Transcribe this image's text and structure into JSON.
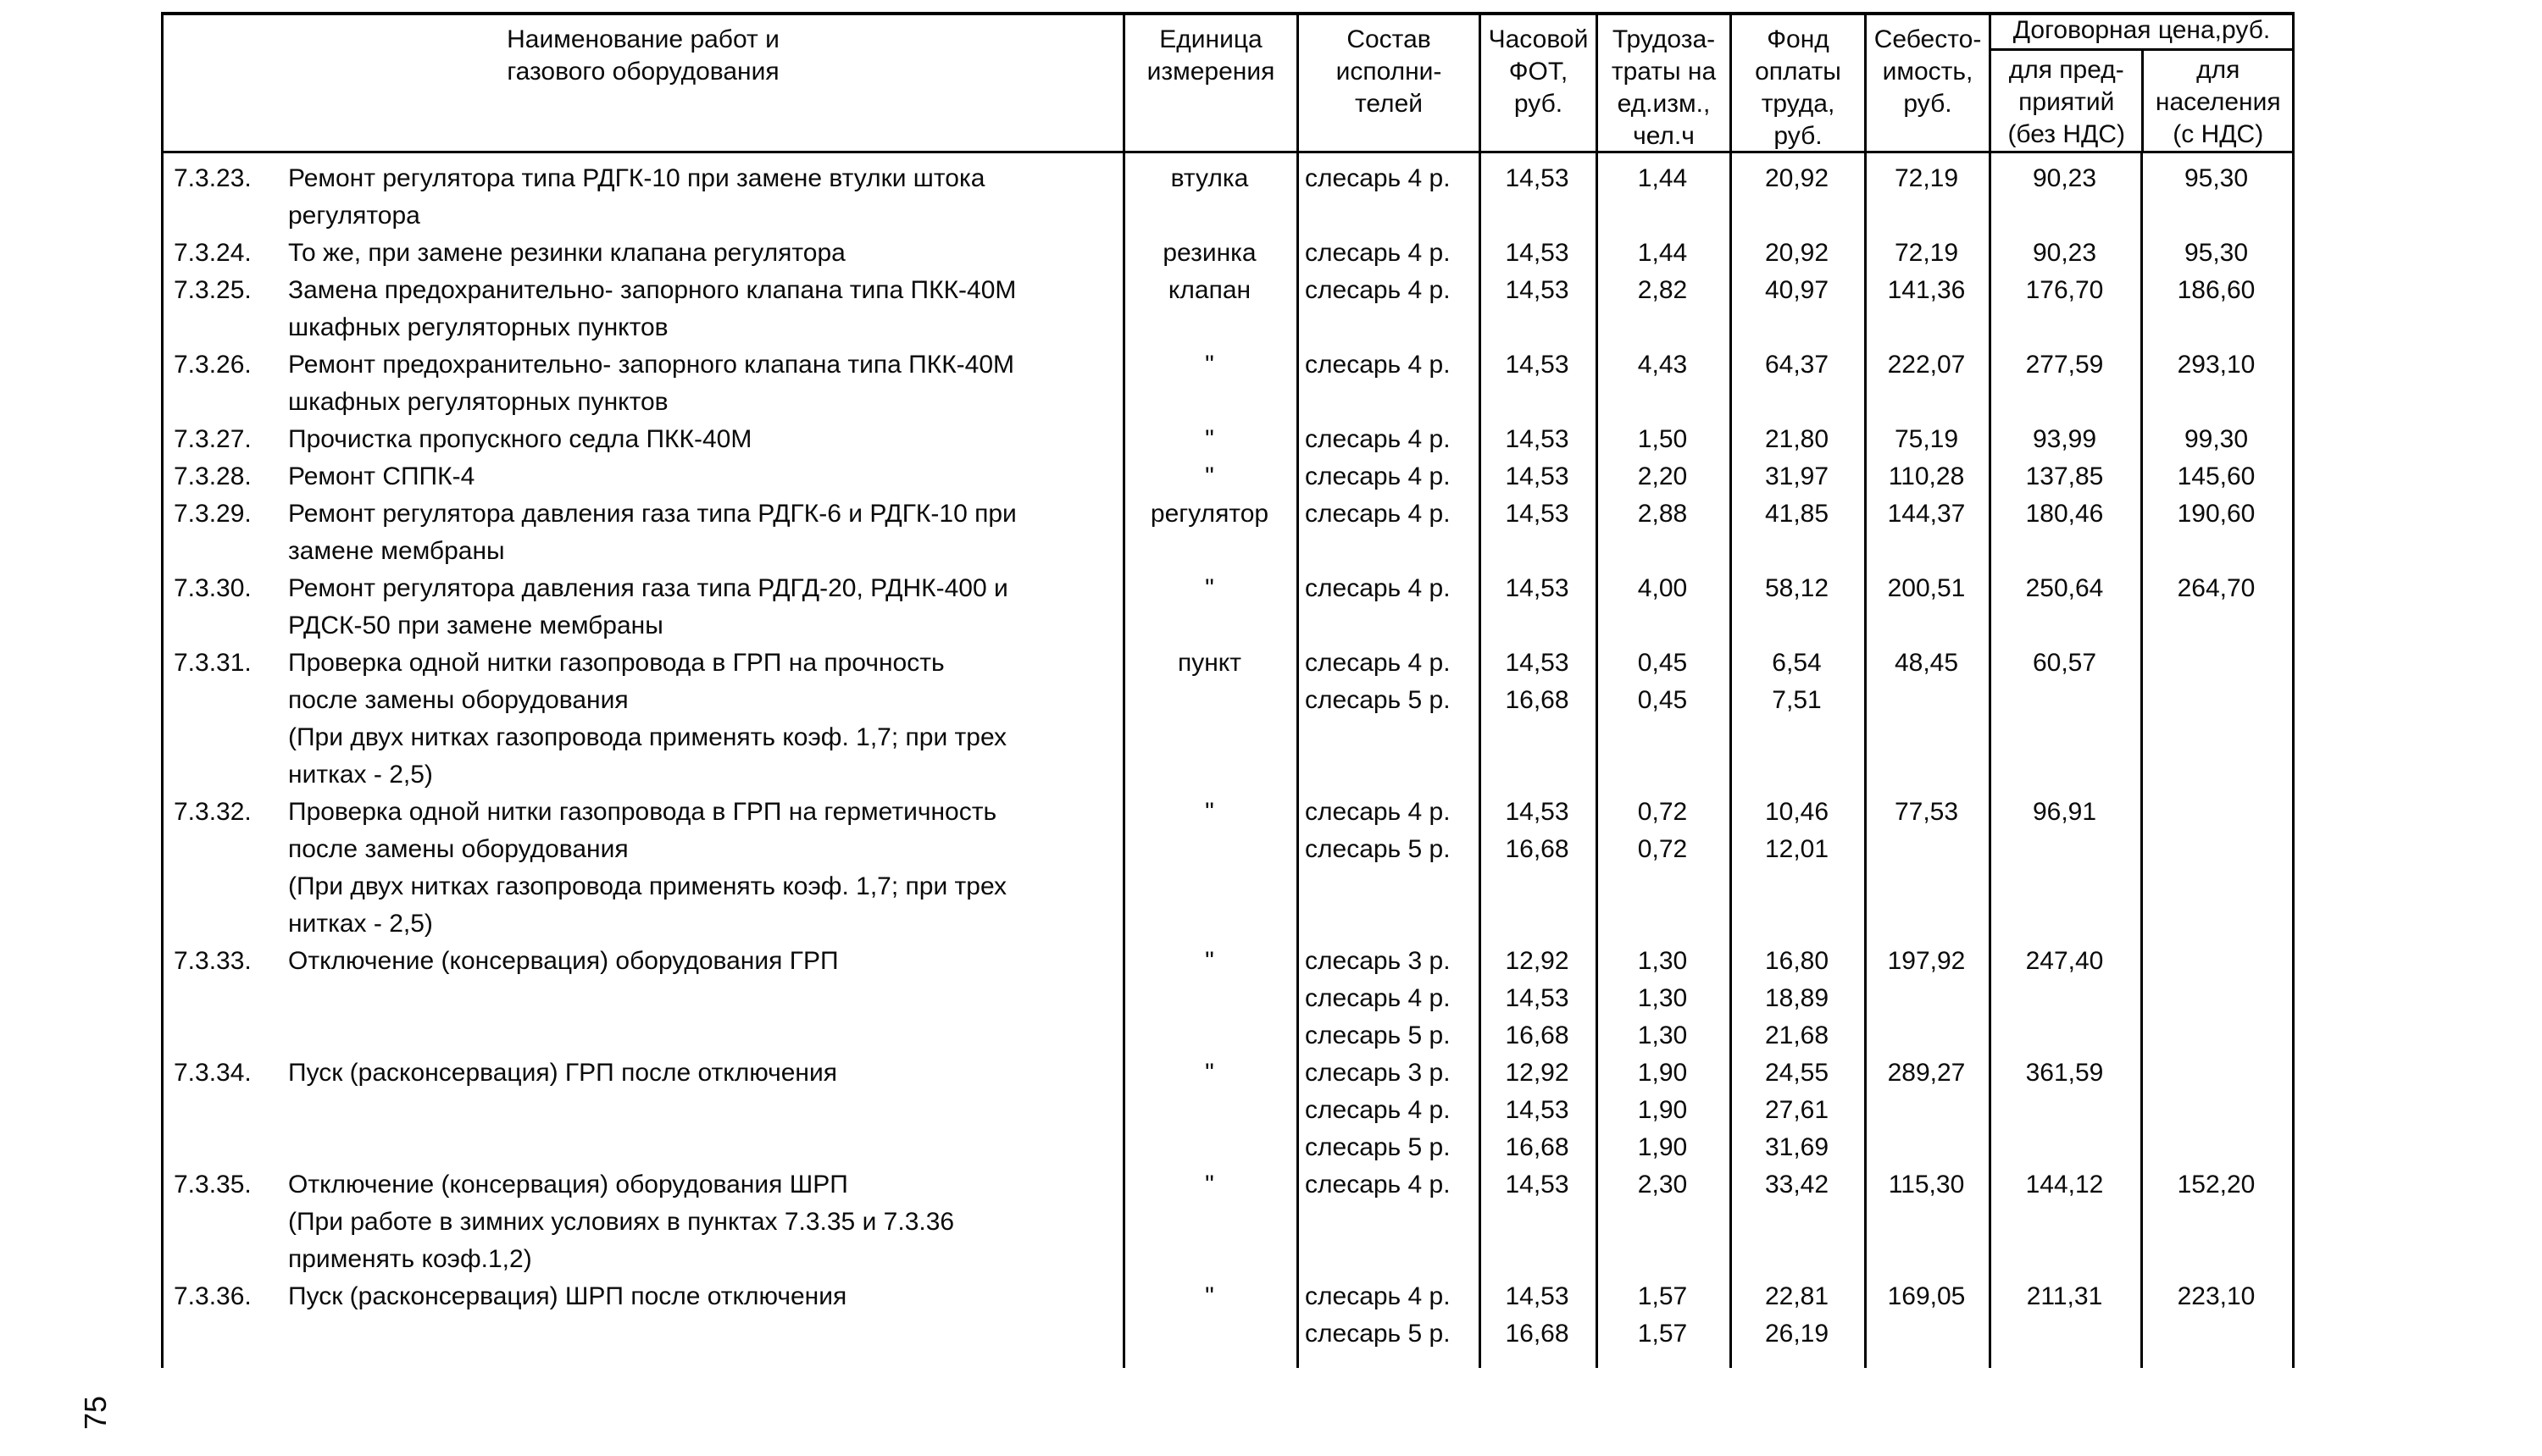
{
  "page": {
    "number": "75"
  },
  "table": {
    "headers": {
      "name": "Наименование работ и\nгазового оборудования",
      "unit": "Единица\nизмерения",
      "crew": "Состав\nисполни-\nтелей",
      "hourly_wage": "Часовой\nФОТ,\nруб.",
      "labor": "Трудоза-\nтраты на\nед.изм.,\nчел.ч",
      "wage_fund": "Фонд\nоплаты\nтруда,\nруб.",
      "cost": "Себесто-\nимость,\nруб.",
      "contract_price": "Договорная цена,руб.",
      "price_enterprise": "для пред-\nприятий\n(без НДС)",
      "price_public": "для\nнаселения\n(с НДС)"
    },
    "rows": [
      {
        "id": "7.3.23.",
        "name_lines": [
          "Ремонт регулятора типа РДГК-10  при замене втулки штока",
          "регулятора"
        ],
        "unit": "втулка",
        "crew": [
          "слесарь 4 р."
        ],
        "hourly_wage": [
          "14,53"
        ],
        "labor": [
          "1,44"
        ],
        "wage_fund": [
          "20,92"
        ],
        "cost": "72,19",
        "price_enterprise": "90,23",
        "price_public": "95,30"
      },
      {
        "id": "7.3.24.",
        "name_lines": [
          "То же, при замене резинки клапана регулятора"
        ],
        "unit": "резинка",
        "crew": [
          "слесарь 4 р."
        ],
        "hourly_wage": [
          "14,53"
        ],
        "labor": [
          "1,44"
        ],
        "wage_fund": [
          "20,92"
        ],
        "cost": "72,19",
        "price_enterprise": "90,23",
        "price_public": "95,30"
      },
      {
        "id": "7.3.25.",
        "name_lines": [
          "Замена предохранительно- запорного клапана типа ПКК-40М",
          "шкафных регуляторных пунктов"
        ],
        "unit": "клапан",
        "crew": [
          "слесарь 4 р."
        ],
        "hourly_wage": [
          "14,53"
        ],
        "labor": [
          "2,82"
        ],
        "wage_fund": [
          "40,97"
        ],
        "cost": "141,36",
        "price_enterprise": "176,70",
        "price_public": "186,60"
      },
      {
        "id": "7.3.26.",
        "name_lines": [
          "Ремонт предохранительно- запорного клапана типа ПКК-40М",
          "шкафных регуляторных пунктов"
        ],
        "unit": "\"",
        "crew": [
          "слесарь 4 р."
        ],
        "hourly_wage": [
          "14,53"
        ],
        "labor": [
          "4,43"
        ],
        "wage_fund": [
          "64,37"
        ],
        "cost": "222,07",
        "price_enterprise": "277,59",
        "price_public": "293,10"
      },
      {
        "id": "7.3.27.",
        "name_lines": [
          "Прочистка  пропускного седла  ПКК-40М"
        ],
        "unit": "\"",
        "crew": [
          "слесарь 4 р."
        ],
        "hourly_wage": [
          "14,53"
        ],
        "labor": [
          "1,50"
        ],
        "wage_fund": [
          "21,80"
        ],
        "cost": "75,19",
        "price_enterprise": "93,99",
        "price_public": "99,30"
      },
      {
        "id": "7.3.28.",
        "name_lines": [
          "Ремонт  СППК-4"
        ],
        "unit": "\"",
        "crew": [
          "слесарь 4 р."
        ],
        "hourly_wage": [
          "14,53"
        ],
        "labor": [
          "2,20"
        ],
        "wage_fund": [
          "31,97"
        ],
        "cost": "110,28",
        "price_enterprise": "137,85",
        "price_public": "145,60"
      },
      {
        "id": "7.3.29.",
        "name_lines": [
          "Ремонт регулятора давления газа типа РДГК-6 и РДГК-10 при",
          "замене мембраны"
        ],
        "unit": "регулятор",
        "crew": [
          "слесарь 4 р."
        ],
        "hourly_wage": [
          "14,53"
        ],
        "labor": [
          "2,88"
        ],
        "wage_fund": [
          "41,85"
        ],
        "cost": "144,37",
        "price_enterprise": "180,46",
        "price_public": "190,60"
      },
      {
        "id": "7.3.30.",
        "name_lines": [
          "Ремонт регулятора давления газа типа РДГД-20, РДНК-400 и",
          "РДСК-50 при замене мембраны"
        ],
        "unit": "\"",
        "crew": [
          "слесарь 4 р."
        ],
        "hourly_wage": [
          "14,53"
        ],
        "labor": [
          "4,00"
        ],
        "wage_fund": [
          "58,12"
        ],
        "cost": "200,51",
        "price_enterprise": "250,64",
        "price_public": "264,70"
      },
      {
        "id": "7.3.31.",
        "name_lines": [
          "Проверка одной  нитки  газопровода в  ГРП на прочность",
          "после замены  оборудования",
          "(При двух нитках газопровода  применять коэф. 1,7; при трех",
          "нитках - 2,5)"
        ],
        "unit": "пункт",
        "crew": [
          "слесарь 4 р.",
          "слесарь 5 р."
        ],
        "hourly_wage": [
          "14,53",
          "16,68"
        ],
        "labor": [
          "0,45",
          "0,45"
        ],
        "wage_fund": [
          "6,54",
          "7,51"
        ],
        "cost": "48,45",
        "price_enterprise": "60,57",
        "price_public": ""
      },
      {
        "id": "7.3.32.",
        "name_lines": [
          "Проверка одной нитки газопровода в ГРП на герметичность",
          "после  замены  оборудования",
          "(При двух нитках газопровода  применять коэф. 1,7; при трех",
          "нитках - 2,5)"
        ],
        "unit": "\"",
        "crew": [
          "слесарь 4 р.",
          "слесарь 5 р."
        ],
        "hourly_wage": [
          "14,53",
          "16,68"
        ],
        "labor": [
          "0,72",
          "0,72"
        ],
        "wage_fund": [
          "10,46",
          "12,01"
        ],
        "cost": "77,53",
        "price_enterprise": "96,91",
        "price_public": ""
      },
      {
        "id": "7.3.33.",
        "name_lines": [
          "Отключение (консервация)  оборудования ГРП"
        ],
        "unit": "\"",
        "crew": [
          "слесарь 3 р.",
          "слесарь 4 р.",
          "слесарь 5 р."
        ],
        "hourly_wage": [
          "12,92",
          "14,53",
          "16,68"
        ],
        "labor": [
          "1,30",
          "1,30",
          "1,30"
        ],
        "wage_fund": [
          "16,80",
          "18,89",
          "21,68"
        ],
        "cost": "197,92",
        "price_enterprise": "247,40",
        "price_public": ""
      },
      {
        "id": "7.3.34.",
        "name_lines": [
          "Пуск (расконсервация) ГРП после отключения"
        ],
        "unit": "\"",
        "crew": [
          "слесарь 3 р.",
          "слесарь 4 р.",
          "слесарь 5 р."
        ],
        "hourly_wage": [
          "12,92",
          "14,53",
          "16,68"
        ],
        "labor": [
          "1,90",
          "1,90",
          "1,90"
        ],
        "wage_fund": [
          "24,55",
          "27,61",
          "31,69"
        ],
        "cost": "289,27",
        "price_enterprise": "361,59",
        "price_public": ""
      },
      {
        "id": "7.3.35.",
        "name_lines": [
          "Отключение (консервация)  оборудования ШРП",
          "(При работе в зимних условиях в пунктах 7.3.35 и 7.3.36",
          "применять коэф.1,2)"
        ],
        "unit": "\"",
        "crew": [
          "слесарь 4 р."
        ],
        "hourly_wage": [
          "14,53"
        ],
        "labor": [
          "2,30"
        ],
        "wage_fund": [
          "33,42"
        ],
        "cost": "115,30",
        "price_enterprise": "144,12",
        "price_public": "152,20"
      },
      {
        "id": "7.3.36.",
        "name_lines": [
          "Пуск (расконсервация) ШРП после отключения"
        ],
        "unit": "\"",
        "crew": [
          "слесарь 4 р.",
          "слесарь 5 р."
        ],
        "hourly_wage": [
          "14,53",
          "16,68"
        ],
        "labor": [
          "1,57",
          "1,57"
        ],
        "wage_fund": [
          "22,81",
          "26,19"
        ],
        "cost": "169,05",
        "price_enterprise": "211,31",
        "price_public": "223,10"
      }
    ]
  }
}
